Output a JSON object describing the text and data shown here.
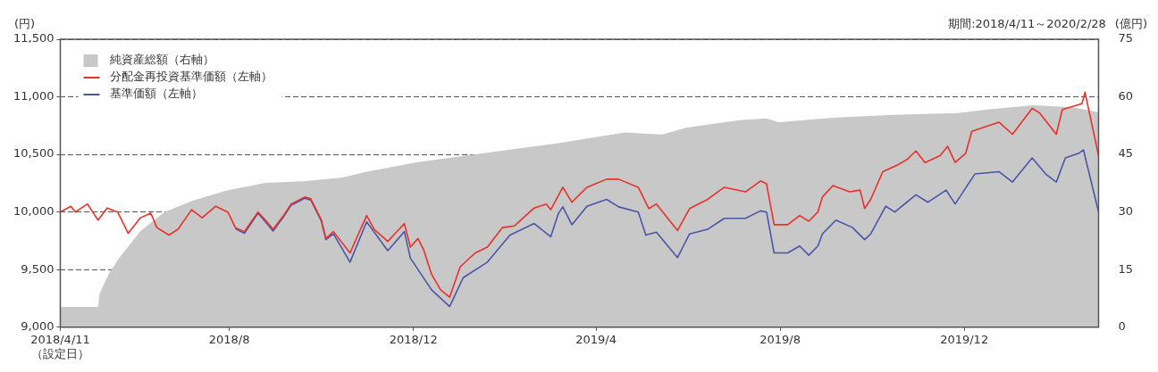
{
  "chart_data": {
    "type": "line",
    "subtitle": "期間:2018/4/11～2020/2/28",
    "ylabel": "(円)",
    "y2label": "(億円)",
    "xlim": [
      "2018-04-11",
      "2020-02-28"
    ],
    "xticks": [
      {
        "value": "2018-04-11",
        "label": "2018/4/11\n（設定日）"
      },
      {
        "value": "2018-08",
        "label": "2018/8"
      },
      {
        "value": "2018-12",
        "label": "2018/12"
      },
      {
        "value": "2019-04",
        "label": "2019/4"
      },
      {
        "value": "2019-08",
        "label": "2019/8"
      },
      {
        "value": "2019-12",
        "label": "2019/12"
      }
    ],
    "ylim": [
      9000,
      11500
    ],
    "yticks": [
      {
        "value": 9000,
        "label": "9,000"
      },
      {
        "value": 9500,
        "label": "9,500"
      },
      {
        "value": 10000,
        "label": "10,000"
      },
      {
        "value": 10500,
        "label": "10,500"
      },
      {
        "value": 11000,
        "label": "11,000"
      },
      {
        "value": 11500,
        "label": "11,500"
      }
    ],
    "y2lim": [
      0,
      75
    ],
    "y2ticks": [
      0,
      15,
      30,
      45,
      60,
      75
    ],
    "grid": "y",
    "legend": "top left",
    "series": [
      {
        "name": "純資産総額（右軸）",
        "type": "area",
        "axis": "y2",
        "color": "#c8c8c8",
        "x": [
          "2018-04-11",
          "2018-05-06",
          "2018-05-07",
          "2018-05-13",
          "2018-05-20",
          "2018-06-03",
          "2018-06-19",
          "2018-07-08",
          "2018-07-31",
          "2018-08-25",
          "2018-09-19",
          "2018-10-15",
          "2018-10-31",
          "2018-12-04",
          "2019-01-11",
          "2019-03-08",
          "2019-04-20",
          "2019-05-15",
          "2019-05-31",
          "2019-07-05",
          "2019-07-23",
          "2019-07-31",
          "2019-09-07",
          "2019-10-15",
          "2019-11-27",
          "2019-12-19",
          "2020-01-16",
          "2020-02-11",
          "2020-02-24",
          "2020-02-28"
        ],
        "values": [
          5.3,
          5.3,
          8.7,
          13.8,
          18,
          25,
          30,
          33,
          35.7,
          37.6,
          38,
          39,
          40.5,
          43,
          45,
          48,
          50.7,
          50.2,
          52,
          53.9,
          54.4,
          53.4,
          54.6,
          55.3,
          55.8,
          56.8,
          57.8,
          57.3,
          56.3,
          56
        ]
      },
      {
        "name": "分配金再投資基準価額（左軸）",
        "type": "line",
        "color": "#e8312a",
        "x": [
          "2018-04-11",
          "2018-04-18",
          "2018-04-21",
          "2018-04-29",
          "2018-05-06",
          "2018-05-12",
          "2018-05-19",
          "2018-05-26",
          "2018-06-03",
          "2018-06-10",
          "2018-06-14",
          "2018-06-22",
          "2018-06-28",
          "2018-07-07",
          "2018-07-14",
          "2018-07-23",
          "2018-07-31",
          "2018-08-05",
          "2018-08-11",
          "2018-08-20",
          "2018-08-25",
          "2018-08-30",
          "2018-09-06",
          "2018-09-11",
          "2018-09-20",
          "2018-09-24",
          "2018-10-01",
          "2018-10-04",
          "2018-10-09",
          "2018-10-20",
          "2018-10-31",
          "2018-11-05",
          "2018-11-14",
          "2018-11-19",
          "2018-11-25",
          "2018-11-29",
          "2018-12-04",
          "2018-12-08",
          "2018-12-13",
          "2018-12-19",
          "2018-12-25",
          "2019-01-01",
          "2019-01-11",
          "2019-01-19",
          "2019-01-29",
          "2019-02-06",
          "2019-02-19",
          "2019-02-27",
          "2019-03-02",
          "2019-03-10",
          "2019-03-16",
          "2019-03-26",
          "2019-04-08",
          "2019-04-16",
          "2019-04-29",
          "2019-05-06",
          "2019-05-11",
          "2019-05-25",
          "2019-06-02",
          "2019-06-14",
          "2019-06-25",
          "2019-07-09",
          "2019-07-19",
          "2019-07-23",
          "2019-07-28",
          "2019-08-06",
          "2019-08-14",
          "2019-08-20",
          "2019-08-26",
          "2019-08-29",
          "2019-09-05",
          "2019-09-16",
          "2019-09-23",
          "2019-09-26",
          "2019-09-30",
          "2019-10-08",
          "2019-10-18",
          "2019-10-24",
          "2019-10-30",
          "2019-11-05",
          "2019-11-15",
          "2019-11-20",
          "2019-11-25",
          "2019-12-02",
          "2019-12-06",
          "2019-12-24",
          "2020-01-02",
          "2020-01-15",
          "2020-01-20",
          "2020-01-31",
          "2020-02-04",
          "2020-02-17",
          "2020-02-19",
          "2020-02-28"
        ],
        "values": [
          10000,
          10050,
          10000,
          10070,
          9930,
          10035,
          10000,
          9815,
          9950,
          9990,
          9865,
          9800,
          9850,
          10020,
          9950,
          10050,
          10000,
          9865,
          9830,
          10000,
          9930,
          9850,
          9970,
          10070,
          10130,
          10115,
          9930,
          9770,
          9830,
          9645,
          9970,
          9850,
          9745,
          9815,
          9900,
          9695,
          9770,
          9665,
          9460,
          9325,
          9260,
          9525,
          9645,
          9695,
          9865,
          9880,
          10035,
          10070,
          10020,
          10215,
          10085,
          10215,
          10285,
          10285,
          10215,
          10030,
          10070,
          9840,
          10030,
          10110,
          10215,
          10175,
          10270,
          10245,
          9890,
          9890,
          9970,
          9920,
          10000,
          10130,
          10230,
          10175,
          10190,
          10030,
          10110,
          10350,
          10410,
          10455,
          10530,
          10430,
          10490,
          10570,
          10430,
          10510,
          10700,
          10780,
          10675,
          10900,
          10860,
          10675,
          10890,
          10940,
          11040,
          10490
        ]
      },
      {
        "name": "基準価額（左軸）",
        "type": "line",
        "color": "#4a55a8",
        "x": [
          "2018-08-05",
          "2018-08-11",
          "2018-08-20",
          "2018-08-25",
          "2018-08-30",
          "2018-09-06",
          "2018-09-11",
          "2018-09-20",
          "2018-09-24",
          "2018-10-01",
          "2018-10-04",
          "2018-10-09",
          "2018-10-20",
          "2018-10-31",
          "2018-11-14",
          "2018-11-25",
          "2018-11-29",
          "2018-12-13",
          "2018-12-25",
          "2019-01-03",
          "2019-01-19",
          "2019-02-03",
          "2019-02-19",
          "2019-03-02",
          "2019-03-07",
          "2019-03-10",
          "2019-03-16",
          "2019-03-26",
          "2019-04-08",
          "2019-04-16",
          "2019-04-29",
          "2019-05-04",
          "2019-05-11",
          "2019-05-25",
          "2019-06-02",
          "2019-06-14",
          "2019-06-25",
          "2019-07-09",
          "2019-07-19",
          "2019-07-23",
          "2019-07-28",
          "2019-08-06",
          "2019-08-14",
          "2019-08-20",
          "2019-08-26",
          "2019-08-29",
          "2019-09-07",
          "2019-09-18",
          "2019-09-26",
          "2019-09-30",
          "2019-10-10",
          "2019-10-16",
          "2019-10-30",
          "2019-11-07",
          "2019-11-19",
          "2019-11-25",
          "2019-12-08",
          "2019-12-24",
          "2020-01-02",
          "2020-01-15",
          "2020-01-24",
          "2020-01-31",
          "2020-02-06",
          "2020-02-15",
          "2020-02-18",
          "2020-02-28"
        ],
        "values": [
          9855,
          9815,
          9990,
          9915,
          9835,
          9960,
          10060,
          10120,
          10105,
          9920,
          9760,
          9810,
          9565,
          9915,
          9665,
          9830,
          9600,
          9325,
          9180,
          9430,
          9565,
          9800,
          9900,
          9785,
          9985,
          10045,
          9890,
          10050,
          10110,
          10045,
          10000,
          9800,
          9825,
          9605,
          9810,
          9850,
          9945,
          9945,
          10010,
          10000,
          9645,
          9645,
          9705,
          9625,
          9705,
          9810,
          9930,
          9865,
          9760,
          9810,
          10050,
          10000,
          10150,
          10085,
          10190,
          10070,
          10330,
          10350,
          10260,
          10470,
          10330,
          10260,
          10470,
          10510,
          10540,
          10000
        ]
      }
    ]
  }
}
